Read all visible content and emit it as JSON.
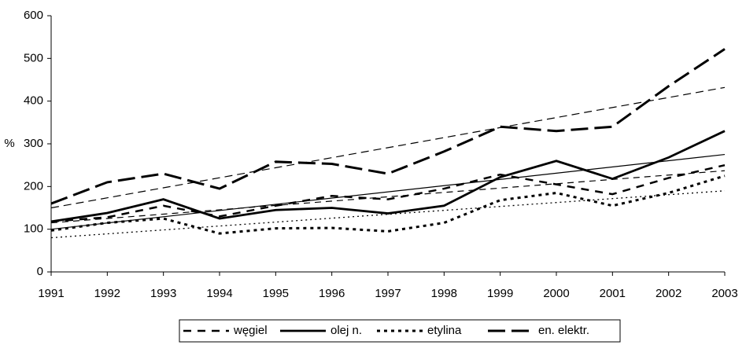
{
  "chart_data": {
    "type": "line",
    "y_label": "%",
    "x": [
      "1991",
      "1992",
      "1993",
      "1994",
      "1995",
      "1996",
      "1997",
      "1998",
      "1999",
      "2000",
      "2001",
      "2002",
      "2003"
    ],
    "ylim": [
      0,
      600
    ],
    "yticks": [
      0,
      100,
      200,
      300,
      400,
      500,
      600
    ],
    "legend": "bottom",
    "series": [
      {
        "name": "węgiel",
        "color": "#000000",
        "style": "dash",
        "values": [
          118,
          128,
          155,
          130,
          155,
          178,
          170,
          195,
          228,
          205,
          182,
          220,
          250
        ],
        "trend": [
          115,
          237
        ]
      },
      {
        "name": "olej n.",
        "color": "#000000",
        "style": "solid",
        "values": [
          118,
          138,
          170,
          125,
          145,
          150,
          137,
          155,
          222,
          260,
          218,
          268,
          330
        ],
        "trend": [
          100,
          275
        ]
      },
      {
        "name": "etylina",
        "color": "#000000",
        "style": "dot",
        "values": [
          97,
          115,
          125,
          90,
          102,
          103,
          95,
          115,
          168,
          185,
          155,
          185,
          225
        ],
        "trend": [
          80,
          190
        ]
      },
      {
        "name": "en. elektr.",
        "color": "#000000",
        "style": "longdash",
        "values": [
          160,
          210,
          230,
          195,
          258,
          253,
          230,
          282,
          340,
          330,
          340,
          435,
          522
        ],
        "trend": [
          150,
          432
        ]
      }
    ]
  }
}
